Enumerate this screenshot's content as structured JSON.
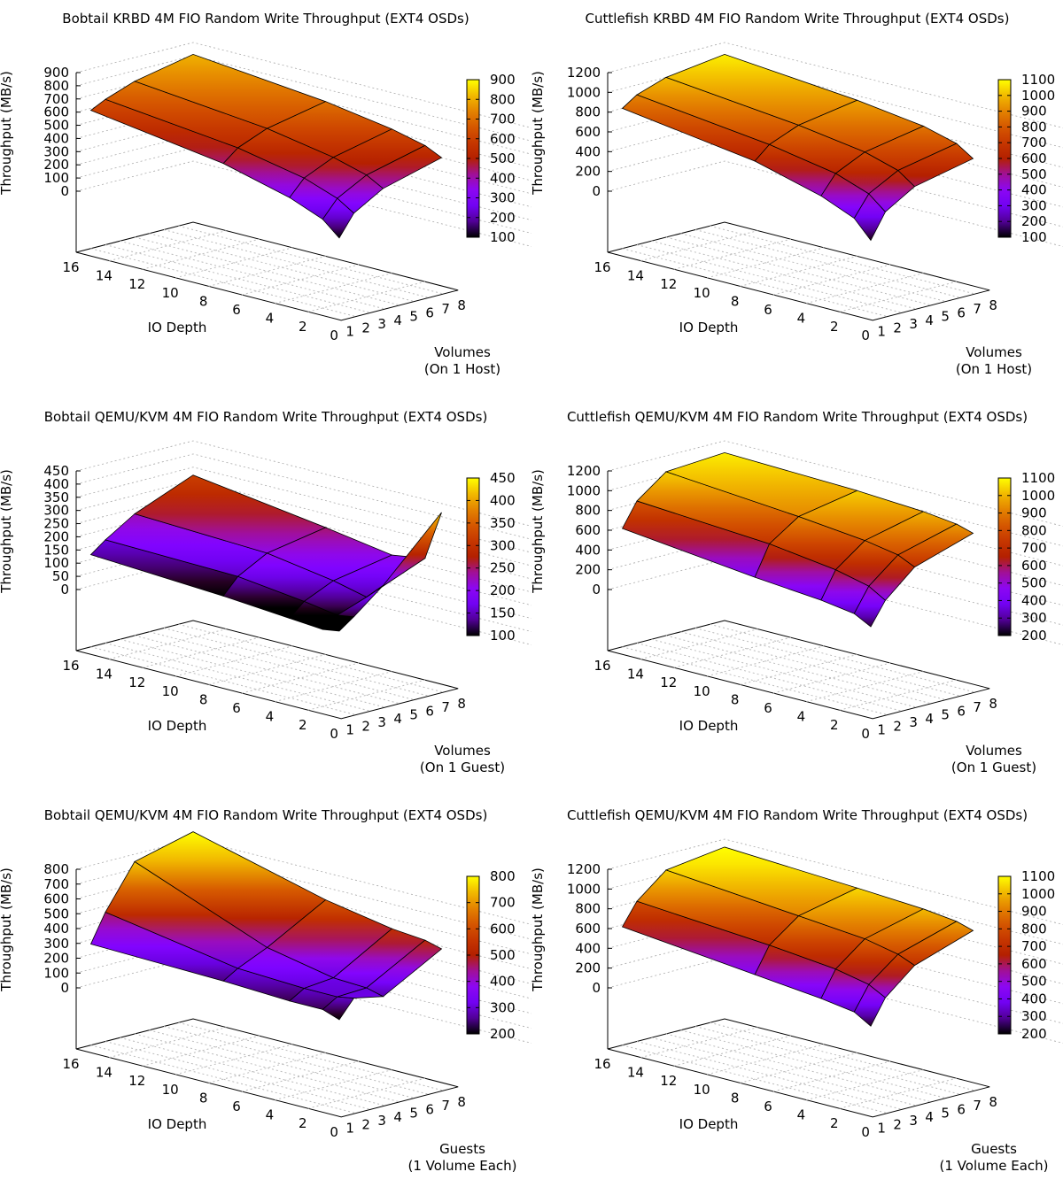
{
  "chart_data": [
    {
      "type": "surface3d",
      "title": "Bobtail KRBD 4M FIO Random Write Throughput (EXT4 OSDs)",
      "zlabel": "Throughput (MB/s)",
      "xlabel": "IO Depth",
      "ylabel": [
        "Volumes",
        "(On 1 Host)"
      ],
      "x_ticks": [
        "16",
        "14",
        "12",
        "10",
        "8",
        "6",
        "4",
        "2"
      ],
      "y_ticks": [
        "0",
        "1",
        "2",
        "3",
        "4",
        "5",
        "6",
        "7",
        "8"
      ],
      "z_ticks": [
        "900",
        "800",
        "700",
        "600",
        "500",
        "400",
        "300",
        "200",
        "100",
        "0"
      ],
      "zlim": [
        0,
        900
      ],
      "cb_ticks": [
        "900",
        "800",
        "700",
        "600",
        "500",
        "400",
        "300",
        "200",
        "100"
      ],
      "cblim": [
        100,
        900
      ],
      "io_depth": [
        16,
        8,
        4,
        2,
        1
      ],
      "count": [
        1,
        2,
        4,
        8
      ],
      "values": [
        [
          585,
          640,
          720,
          810
        ],
        [
          440,
          530,
          620,
          710
        ],
        [
          310,
          430,
          530,
          630
        ],
        [
          210,
          340,
          460,
          570
        ],
        [
          100,
          260,
          390,
          510
        ]
      ]
    },
    {
      "type": "surface3d",
      "title": "Cuttlefish KRBD 4M FIO Random Write Throughput (EXT4 OSDs)",
      "zlabel": "Throughput (MB/s)",
      "xlabel": "IO Depth",
      "ylabel": [
        "Volumes",
        "(On 1 Host)"
      ],
      "x_ticks": [
        "16",
        "14",
        "12",
        "10",
        "8",
        "6",
        "4",
        "2"
      ],
      "y_ticks": [
        "0",
        "1",
        "2",
        "3",
        "4",
        "5",
        "6",
        "7",
        "8"
      ],
      "z_ticks": [
        "1200",
        "1000",
        "800",
        "600",
        "400",
        "200",
        "0"
      ],
      "zlim": [
        0,
        1200
      ],
      "cb_ticks": [
        "1100",
        "1000",
        "900",
        "800",
        "700",
        "600",
        "500",
        "400",
        "300",
        "200",
        "100"
      ],
      "cblim": [
        100,
        1100
      ],
      "io_depth": [
        16,
        8,
        4,
        2,
        1
      ],
      "count": [
        1,
        2,
        4,
        8
      ],
      "values": [
        [
          800,
          900,
          1000,
          1080
        ],
        [
          610,
          740,
          860,
          960
        ],
        [
          430,
          620,
          760,
          870
        ],
        [
          290,
          500,
          660,
          780
        ],
        [
          110,
          360,
          540,
          670
        ]
      ]
    },
    {
      "type": "surface3d",
      "title": "Bobtail QEMU/KVM 4M FIO Random Write Throughput (EXT4 OSDs)",
      "zlabel": "Throughput (MB/s)",
      "xlabel": "IO Depth",
      "ylabel": [
        "Volumes",
        "(On 1 Guest)"
      ],
      "x_ticks": [
        "16",
        "14",
        "12",
        "10",
        "8",
        "6",
        "4",
        "2"
      ],
      "y_ticks": [
        "0",
        "1",
        "2",
        "3",
        "4",
        "5",
        "6",
        "7",
        "8"
      ],
      "z_ticks": [
        "450",
        "400",
        "350",
        "300",
        "250",
        "200",
        "150",
        "100",
        "50",
        "0"
      ],
      "zlim": [
        0,
        450
      ],
      "cb_ticks": [
        "450",
        "400",
        "350",
        "300",
        "250",
        "200",
        "150",
        "100"
      ],
      "cblim": [
        100,
        450
      ],
      "io_depth": [
        16,
        8,
        4,
        2,
        1
      ],
      "count": [
        1,
        2,
        4,
        8
      ],
      "values": [
        [
          118,
          160,
          230,
          320
        ],
        [
          90,
          150,
          210,
          250
        ],
        [
          70,
          120,
          170,
          210
        ],
        [
          60,
          100,
          140,
          230
        ],
        [
          70,
          110,
          200,
          420
        ]
      ]
    },
    {
      "type": "surface3d",
      "title": "Cuttlefish QEMU/KVM 4M FIO Random Write Throughput (EXT4 OSDs)",
      "zlabel": "Throughput (MB/s)",
      "xlabel": "IO Depth",
      "ylabel": [
        "Volumes",
        "(On 1 Guest)"
      ],
      "x_ticks": [
        "16",
        "14",
        "12",
        "10",
        "8",
        "6",
        "4",
        "2"
      ],
      "y_ticks": [
        "0",
        "1",
        "2",
        "3",
        "4",
        "5",
        "6",
        "7",
        "8"
      ],
      "z_ticks": [
        "1200",
        "1000",
        "800",
        "600",
        "400",
        "200",
        "0"
      ],
      "zlim": [
        0,
        1200
      ],
      "cb_ticks": [
        "1100",
        "1000",
        "900",
        "800",
        "700",
        "600",
        "500",
        "400",
        "300",
        "200"
      ],
      "cblim": [
        200,
        1100
      ],
      "io_depth": [
        16,
        8,
        4,
        2,
        1
      ],
      "count": [
        1,
        2,
        4,
        8
      ],
      "values": [
        [
          580,
          820,
          1040,
          1080
        ],
        [
          430,
          730,
          930,
          1040
        ],
        [
          370,
          640,
          860,
          1000
        ],
        [
          320,
          560,
          800,
          960
        ],
        [
          230,
          460,
          720,
          910
        ]
      ]
    },
    {
      "type": "surface3d",
      "title": "Bobtail QEMU/KVM 4M FIO Random Write Throughput (EXT4 OSDs)",
      "zlabel": "Throughput (MB/s)",
      "xlabel": "IO Depth",
      "ylabel": [
        "Guests",
        "(1 Volume Each)"
      ],
      "x_ticks": [
        "16",
        "14",
        "12",
        "10",
        "8",
        "6",
        "4",
        "2"
      ],
      "y_ticks": [
        "0",
        "1",
        "2",
        "3",
        "4",
        "5",
        "6",
        "7",
        "8"
      ],
      "z_ticks": [
        "800",
        "700",
        "600",
        "500",
        "400",
        "300",
        "200",
        "100",
        "0"
      ],
      "zlim": [
        0,
        800
      ],
      "cb_ticks": [
        "800",
        "700",
        "600",
        "500",
        "400",
        "300",
        "200"
      ],
      "cblim": [
        200,
        800
      ],
      "io_depth": [
        16,
        8,
        4,
        2,
        1
      ],
      "count": [
        1,
        2,
        4,
        8
      ],
      "values": [
        [
          270,
          460,
          750,
          850
        ],
        [
          250,
          310,
          400,
          620
        ],
        [
          230,
          290,
          310,
          540
        ],
        [
          230,
          290,
          300,
          520
        ],
        [
          190,
          310,
          270,
          490
        ]
      ]
    },
    {
      "type": "surface3d",
      "title": "Cuttlefish QEMU/KVM 4M FIO Random Write Throughput (EXT4 OSDs)",
      "zlabel": "Throughput (MB/s)",
      "xlabel": "IO Depth",
      "ylabel": [
        "Guests",
        "(1 Volume Each)"
      ],
      "x_ticks": [
        "16",
        "14",
        "12",
        "10",
        "8",
        "6",
        "4",
        "2"
      ],
      "y_ticks": [
        "0",
        "1",
        "2",
        "3",
        "4",
        "5",
        "6",
        "7",
        "8"
      ],
      "z_ticks": [
        "1200",
        "1000",
        "800",
        "600",
        "400",
        "200",
        "0"
      ],
      "zlim": [
        0,
        1200
      ],
      "cb_ticks": [
        "1100",
        "1000",
        "900",
        "800",
        "700",
        "600",
        "500",
        "400",
        "300",
        "200"
      ],
      "cblim": [
        200,
        1100
      ],
      "io_depth": [
        16,
        8,
        4,
        2,
        1
      ],
      "count": [
        1,
        2,
        4,
        8
      ],
      "values": [
        [
          580,
          800,
          1040,
          1120
        ],
        [
          440,
          700,
          920,
          1050
        ],
        [
          370,
          630,
          860,
          1010
        ],
        [
          320,
          560,
          790,
          970
        ],
        [
          220,
          470,
          720,
          920
        ]
      ]
    }
  ]
}
